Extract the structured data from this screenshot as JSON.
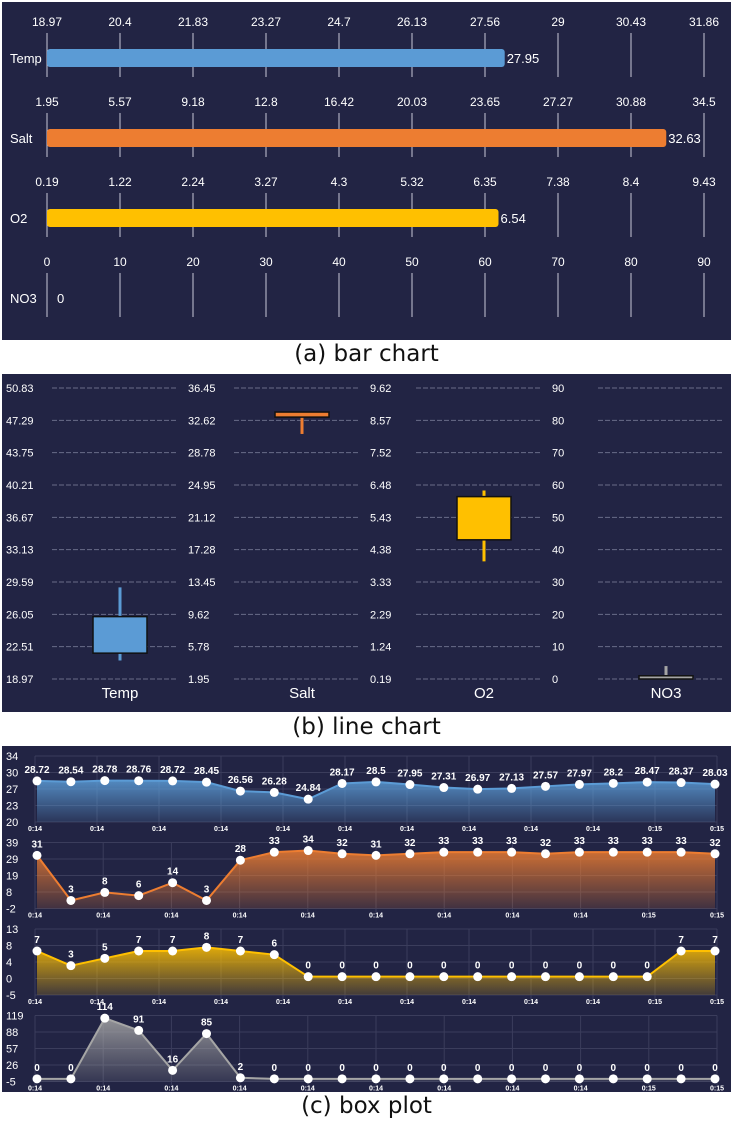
{
  "captions": {
    "a": "(a) bar chart",
    "b": "(b) line chart",
    "c": "(c) box plot"
  },
  "colors": {
    "panel_bg": "#222444",
    "temp": "#5b9bd5",
    "salt": "#ed7d31",
    "o2": "#ffc000",
    "no3": "#a5a5a5"
  },
  "chart_data": [
    {
      "type": "bar",
      "orientation": "horizontal",
      "rows": [
        {
          "label": "Temp",
          "value": 27.95,
          "color": "#5b9bd5",
          "ticks": [
            "18.97",
            "20.4",
            "21.83",
            "23.27",
            "24.7",
            "26.13",
            "27.56",
            "29",
            "30.43",
            "31.86"
          ],
          "range": [
            18.97,
            31.86
          ]
        },
        {
          "label": "Salt",
          "value": 32.63,
          "color": "#ed7d31",
          "ticks": [
            "1.95",
            "5.57",
            "9.18",
            "12.8",
            "16.42",
            "20.03",
            "23.65",
            "27.27",
            "30.88",
            "34.5"
          ],
          "range": [
            1.95,
            34.5
          ]
        },
        {
          "label": "O2",
          "value": 6.54,
          "color": "#ffc000",
          "ticks": [
            "0.19",
            "1.22",
            "2.24",
            "3.27",
            "4.3",
            "5.32",
            "6.35",
            "7.38",
            "8.4",
            "9.43"
          ],
          "range": [
            0.19,
            9.43
          ]
        },
        {
          "label": "NO3",
          "value": 0,
          "color": "#a5a5a5",
          "ticks": [
            "0",
            "10",
            "20",
            "30",
            "40",
            "50",
            "60",
            "70",
            "80",
            "90"
          ],
          "range": [
            0,
            90
          ]
        }
      ]
    },
    {
      "type": "box",
      "panels": [
        {
          "label": "Temp",
          "color": "#5b9bd5",
          "ticks": [
            "18.97",
            "22.51",
            "26.05",
            "29.59",
            "33.13",
            "36.67",
            "40.21",
            "43.75",
            "47.29",
            "50.83"
          ],
          "range": [
            18.97,
            50.83
          ],
          "min": 21.0,
          "q1": 21.8,
          "q3": 25.8,
          "max": 29.0
        },
        {
          "label": "Salt",
          "color": "#ed7d31",
          "ticks": [
            "1.95",
            "5.78",
            "9.62",
            "13.45",
            "17.28",
            "21.12",
            "24.95",
            "28.78",
            "32.62",
            "36.45"
          ],
          "range": [
            1.95,
            36.45
          ],
          "min": 31.0,
          "q1": 33.0,
          "q3": 33.6,
          "max": 33.6
        },
        {
          "label": "O2",
          "color": "#ffc000",
          "ticks": [
            "0.19",
            "1.24",
            "2.29",
            "3.33",
            "4.38",
            "5.43",
            "6.48",
            "7.52",
            "8.57",
            "9.62"
          ],
          "range": [
            0.19,
            9.62
          ],
          "min": 4.0,
          "q1": 4.7,
          "q3": 6.1,
          "max": 6.3
        },
        {
          "label": "NO3",
          "color": "#a5a5a5",
          "ticks": [
            "0",
            "10",
            "20",
            "30",
            "40",
            "50",
            "60",
            "70",
            "80",
            "90"
          ],
          "range": [
            0,
            90
          ],
          "min": 0,
          "q1": 0,
          "q3": 1,
          "max": 4
        }
      ]
    },
    {
      "type": "area",
      "series": [
        {
          "name": "Temp",
          "color": "#5b9bd5",
          "yticks": [
            "34",
            "30",
            "27",
            "23",
            "20"
          ],
          "range": [
            20,
            34
          ],
          "xticks": [
            "0:14",
            "0:14",
            "0:14",
            "0:14",
            "0:14",
            "0:14",
            "0:14",
            "0:14",
            "0:14",
            "0:14",
            "0:15",
            "0:15"
          ],
          "values": [
            28.72,
            28.54,
            28.78,
            28.76,
            28.72,
            28.45,
            26.56,
            26.28,
            24.84,
            28.17,
            28.5,
            27.95,
            27.31,
            26.97,
            27.13,
            27.57,
            27.97,
            28.2,
            28.47,
            28.37,
            28.03
          ]
        },
        {
          "name": "Salt",
          "color": "#ed7d31",
          "yticks": [
            "39",
            "29",
            "19",
            "8",
            "-2"
          ],
          "range": [
            -2,
            39
          ],
          "xticks": [
            "0:14",
            "0:14",
            "0:14",
            "0:14",
            "0:14",
            "0:14",
            "0:14",
            "0:14",
            "0:14",
            "0:15",
            "0:15"
          ],
          "values": [
            31,
            3,
            8,
            6,
            14,
            3,
            28,
            33,
            34,
            32,
            31,
            32,
            33,
            33,
            33,
            32,
            33,
            33,
            33,
            33,
            32
          ]
        },
        {
          "name": "O2",
          "color": "#ffc000",
          "yticks": [
            "13",
            "8",
            "4",
            "0",
            "-5"
          ],
          "range": [
            -5,
            13
          ],
          "xticks": [
            "0:14",
            "0:14",
            "0:14",
            "0:14",
            "0:14",
            "0:14",
            "0:14",
            "0:14",
            "0:14",
            "0:14",
            "0:15",
            "0:15"
          ],
          "values": [
            7,
            3,
            5,
            7,
            7,
            8,
            7,
            6,
            0,
            0,
            0,
            0,
            0,
            0,
            0,
            0,
            0,
            0,
            0,
            7,
            7
          ]
        },
        {
          "name": "NO3",
          "color": "#a5a5a5",
          "yticks": [
            "119",
            "88",
            "57",
            "26",
            "-5"
          ],
          "range": [
            -5,
            119
          ],
          "xticks": [
            "0:14",
            "0:14",
            "0:14",
            "0:14",
            "0:14",
            "0:14",
            "0:14",
            "0:14",
            "0:14",
            "0:15",
            "0:15"
          ],
          "values": [
            0,
            0,
            114,
            91,
            16,
            85,
            2,
            0,
            0,
            0,
            0,
            0,
            0,
            0,
            0,
            0,
            0,
            0,
            0,
            0,
            0
          ]
        }
      ]
    }
  ]
}
